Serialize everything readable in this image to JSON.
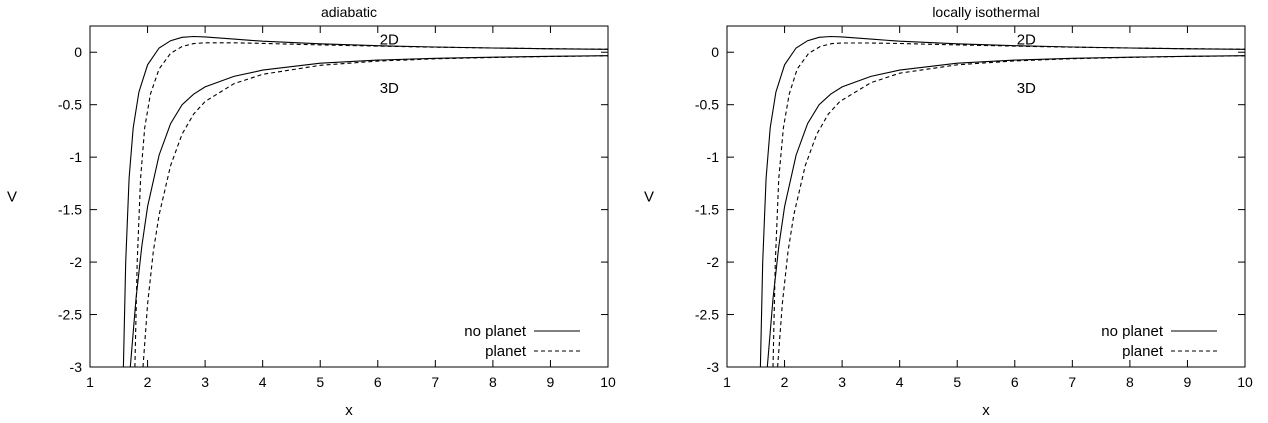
{
  "chart_data": [
    {
      "type": "line",
      "title": "adiabatic",
      "xlabel": "x",
      "ylabel": "V",
      "xlim": [
        1,
        10
      ],
      "ylim": [
        -3,
        0.25
      ],
      "x_ticks": [
        "1",
        "2",
        "3",
        "4",
        "5",
        "6",
        "7",
        "8",
        "9",
        "10"
      ],
      "y_ticks": [
        "0",
        "-0.5",
        "-1",
        "-1.5",
        "-2",
        "-2.5",
        "-3"
      ],
      "legend_position": "bottom-right",
      "annotations": [
        {
          "text": "2D",
          "x": 6.2,
          "y": 0.12
        },
        {
          "text": "3D",
          "x": 6.2,
          "y": -0.34
        }
      ],
      "series": [
        {
          "name": "no planet",
          "style": "solid",
          "points": [
            [
              1.58,
              -3.0
            ],
            [
              1.62,
              -2.0
            ],
            [
              1.68,
              -1.2
            ],
            [
              1.75,
              -0.72
            ],
            [
              1.85,
              -0.38
            ],
            [
              2.0,
              -0.12
            ],
            [
              2.2,
              0.04
            ],
            [
              2.4,
              0.11
            ],
            [
              2.6,
              0.142
            ],
            [
              2.8,
              0.15
            ],
            [
              3.0,
              0.146
            ],
            [
              3.5,
              0.125
            ],
            [
              4.0,
              0.105
            ],
            [
              5.0,
              0.08
            ],
            [
              6.0,
              0.062
            ],
            [
              7.0,
              0.05
            ],
            [
              8.0,
              0.04
            ],
            [
              9.0,
              0.033
            ],
            [
              10.0,
              0.028
            ]
          ]
        },
        {
          "name": "planet",
          "style": "dashed",
          "points": [
            [
              1.78,
              -3.0
            ],
            [
              1.82,
              -2.0
            ],
            [
              1.88,
              -1.2
            ],
            [
              1.95,
              -0.72
            ],
            [
              2.05,
              -0.4
            ],
            [
              2.2,
              -0.16
            ],
            [
              2.4,
              -0.01
            ],
            [
              2.6,
              0.055
            ],
            [
              2.8,
              0.082
            ],
            [
              3.0,
              0.09
            ],
            [
              3.5,
              0.09
            ],
            [
              4.0,
              0.084
            ],
            [
              5.0,
              0.07
            ],
            [
              6.0,
              0.058
            ],
            [
              7.0,
              0.048
            ],
            [
              8.0,
              0.04
            ],
            [
              9.0,
              0.034
            ],
            [
              10.0,
              0.029
            ]
          ]
        },
        {
          "name": "no planet",
          "style": "solid",
          "points": [
            [
              1.7,
              -3.0
            ],
            [
              1.8,
              -2.35
            ],
            [
              1.9,
              -1.85
            ],
            [
              2.0,
              -1.47
            ],
            [
              2.2,
              -0.98
            ],
            [
              2.4,
              -0.68
            ],
            [
              2.6,
              -0.5
            ],
            [
              2.8,
              -0.4
            ],
            [
              3.0,
              -0.33
            ],
            [
              3.5,
              -0.23
            ],
            [
              4.0,
              -0.17
            ],
            [
              5.0,
              -0.105
            ],
            [
              6.0,
              -0.075
            ],
            [
              7.0,
              -0.058
            ],
            [
              8.0,
              -0.047
            ],
            [
              9.0,
              -0.039
            ],
            [
              10.0,
              -0.033
            ]
          ]
        },
        {
          "name": "planet",
          "style": "dashed",
          "points": [
            [
              1.92,
              -3.0
            ],
            [
              2.0,
              -2.4
            ],
            [
              2.1,
              -1.9
            ],
            [
              2.2,
              -1.55
            ],
            [
              2.4,
              -1.08
            ],
            [
              2.6,
              -0.78
            ],
            [
              2.8,
              -0.59
            ],
            [
              3.0,
              -0.47
            ],
            [
              3.5,
              -0.3
            ],
            [
              4.0,
              -0.21
            ],
            [
              5.0,
              -0.125
            ],
            [
              6.0,
              -0.085
            ],
            [
              7.0,
              -0.063
            ],
            [
              8.0,
              -0.05
            ],
            [
              9.0,
              -0.041
            ],
            [
              10.0,
              -0.034
            ]
          ]
        }
      ]
    },
    {
      "type": "line",
      "title": "locally isothermal",
      "xlabel": "x",
      "ylabel": "V",
      "xlim": [
        1,
        10
      ],
      "ylim": [
        -3,
        0.25
      ],
      "x_ticks": [
        "1",
        "2",
        "3",
        "4",
        "5",
        "6",
        "7",
        "8",
        "9",
        "10"
      ],
      "y_ticks": [
        "0",
        "-0.5",
        "-1",
        "-1.5",
        "-2",
        "-2.5",
        "-3"
      ],
      "legend_position": "bottom-right",
      "annotations": [
        {
          "text": "2D",
          "x": 6.2,
          "y": 0.12
        },
        {
          "text": "3D",
          "x": 6.2,
          "y": -0.34
        }
      ],
      "series": [
        {
          "name": "no planet",
          "style": "solid",
          "points": [
            [
              1.58,
              -3.0
            ],
            [
              1.62,
              -2.0
            ],
            [
              1.68,
              -1.2
            ],
            [
              1.75,
              -0.72
            ],
            [
              1.85,
              -0.38
            ],
            [
              2.0,
              -0.12
            ],
            [
              2.2,
              0.04
            ],
            [
              2.4,
              0.11
            ],
            [
              2.6,
              0.142
            ],
            [
              2.8,
              0.15
            ],
            [
              3.0,
              0.146
            ],
            [
              3.5,
              0.125
            ],
            [
              4.0,
              0.105
            ],
            [
              5.0,
              0.08
            ],
            [
              6.0,
              0.062
            ],
            [
              7.0,
              0.05
            ],
            [
              8.0,
              0.04
            ],
            [
              9.0,
              0.033
            ],
            [
              10.0,
              0.028
            ]
          ]
        },
        {
          "name": "planet",
          "style": "dashed",
          "points": [
            [
              1.8,
              -3.0
            ],
            [
              1.84,
              -2.0
            ],
            [
              1.9,
              -1.2
            ],
            [
              1.98,
              -0.72
            ],
            [
              2.08,
              -0.4
            ],
            [
              2.22,
              -0.16
            ],
            [
              2.42,
              -0.01
            ],
            [
              2.62,
              0.055
            ],
            [
              2.82,
              0.082
            ],
            [
              3.0,
              0.088
            ],
            [
              3.5,
              0.088
            ],
            [
              4.0,
              0.083
            ],
            [
              5.0,
              0.07
            ],
            [
              6.0,
              0.058
            ],
            [
              7.0,
              0.048
            ],
            [
              8.0,
              0.04
            ],
            [
              9.0,
              0.034
            ],
            [
              10.0,
              0.029
            ]
          ]
        },
        {
          "name": "no planet",
          "style": "solid",
          "points": [
            [
              1.7,
              -3.0
            ],
            [
              1.8,
              -2.35
            ],
            [
              1.9,
              -1.85
            ],
            [
              2.0,
              -1.47
            ],
            [
              2.2,
              -0.98
            ],
            [
              2.4,
              -0.68
            ],
            [
              2.6,
              -0.5
            ],
            [
              2.8,
              -0.4
            ],
            [
              3.0,
              -0.33
            ],
            [
              3.5,
              -0.23
            ],
            [
              4.0,
              -0.17
            ],
            [
              5.0,
              -0.105
            ],
            [
              6.0,
              -0.075
            ],
            [
              7.0,
              -0.058
            ],
            [
              8.0,
              -0.047
            ],
            [
              9.0,
              -0.039
            ],
            [
              10.0,
              -0.033
            ]
          ]
        },
        {
          "name": "planet",
          "style": "dashed",
          "points": [
            [
              1.88,
              -3.0
            ],
            [
              1.96,
              -2.4
            ],
            [
              2.06,
              -1.9
            ],
            [
              2.16,
              -1.55
            ],
            [
              2.36,
              -1.08
            ],
            [
              2.56,
              -0.78
            ],
            [
              2.76,
              -0.59
            ],
            [
              2.96,
              -0.47
            ],
            [
              3.5,
              -0.29
            ],
            [
              4.0,
              -0.2
            ],
            [
              5.0,
              -0.12
            ],
            [
              6.0,
              -0.083
            ],
            [
              7.0,
              -0.062
            ],
            [
              8.0,
              -0.049
            ],
            [
              9.0,
              -0.04
            ],
            [
              10.0,
              -0.034
            ]
          ]
        }
      ]
    }
  ],
  "legend": {
    "entries": [
      {
        "label": "no planet",
        "style": "solid"
      },
      {
        "label": "planet",
        "style": "dashed"
      }
    ]
  },
  "colors": {
    "line": "#000000",
    "frame": "#000000",
    "background": "#ffffff"
  }
}
